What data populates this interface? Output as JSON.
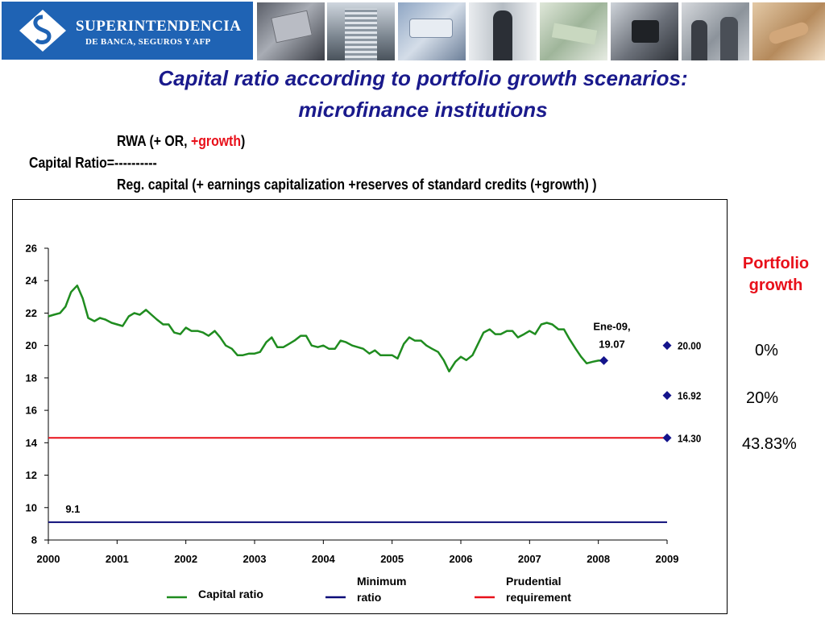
{
  "header": {
    "logo_line1": "SUPERINTENDENCIA",
    "logo_line2": "DE BANCA, SEGUROS Y AFP"
  },
  "title": {
    "line1": "Capital ratio according to portfolio growth scenarios:",
    "line2": "microfinance institutions"
  },
  "formula": {
    "numerator_prefix": "RWA  (+ OR, ",
    "numerator_growth": "+growth",
    "numerator_suffix": ")",
    "lhs": "Capital Ratio=----------",
    "denominator": "Reg. capital (+ earnings capitalization +reserves of standard credits (+growth) )"
  },
  "portfolio_growth": {
    "title_line1": "Portfolio",
    "title_line2": "growth",
    "values": [
      "0%",
      "20%",
      "43.83%"
    ]
  },
  "colors": {
    "capital_ratio": "#1f8c1f",
    "minimum_ratio": "#0c0c78",
    "prudential": "#e8101a",
    "markers": "#14148c",
    "title": "#1a1a8c",
    "logo_bg": "#1f63b4"
  },
  "chart_data": {
    "type": "line",
    "xlim": [
      2000,
      2009
    ],
    "ylim": [
      8,
      26
    ],
    "x_ticks": [
      "2000",
      "2001",
      "2002",
      "2003",
      "2004",
      "2005",
      "2006",
      "2007",
      "2008",
      "2009"
    ],
    "y_ticks": [
      "8",
      "10",
      "12",
      "14",
      "16",
      "18",
      "20",
      "22",
      "24",
      "26"
    ],
    "series": [
      {
        "name": "Capital ratio",
        "color": "#1f8c1f",
        "x": [
          2000.0,
          2000.08,
          2000.17,
          2000.25,
          2000.33,
          2000.42,
          2000.5,
          2000.58,
          2000.67,
          2000.75,
          2000.83,
          2000.92,
          2001.0,
          2001.08,
          2001.17,
          2001.25,
          2001.33,
          2001.42,
          2001.5,
          2001.58,
          2001.67,
          2001.75,
          2001.83,
          2001.92,
          2002.0,
          2002.08,
          2002.17,
          2002.25,
          2002.33,
          2002.42,
          2002.5,
          2002.58,
          2002.67,
          2002.75,
          2002.83,
          2002.92,
          2003.0,
          2003.08,
          2003.17,
          2003.25,
          2003.33,
          2003.42,
          2003.5,
          2003.58,
          2003.67,
          2003.75,
          2003.83,
          2003.92,
          2004.0,
          2004.08,
          2004.17,
          2004.25,
          2004.33,
          2004.42,
          2004.5,
          2004.58,
          2004.67,
          2004.75,
          2004.83,
          2004.92,
          2005.0,
          2005.08,
          2005.17,
          2005.25,
          2005.33,
          2005.42,
          2005.5,
          2005.58,
          2005.67,
          2005.75,
          2005.83,
          2005.92,
          2006.0,
          2006.08,
          2006.17,
          2006.25,
          2006.33,
          2006.42,
          2006.5,
          2006.58,
          2006.67,
          2006.75,
          2006.83,
          2006.92,
          2007.0,
          2007.08,
          2007.17,
          2007.25,
          2007.33,
          2007.42,
          2007.5,
          2007.58,
          2007.67,
          2007.75,
          2007.83,
          2007.92,
          2008.0,
          2008.08
        ],
        "y": [
          21.8,
          21.9,
          22.0,
          22.4,
          23.3,
          23.7,
          22.9,
          21.7,
          21.5,
          21.7,
          21.6,
          21.4,
          21.3,
          21.2,
          21.8,
          22.0,
          21.9,
          22.2,
          21.9,
          21.6,
          21.3,
          21.3,
          20.8,
          20.7,
          21.1,
          20.9,
          20.9,
          20.8,
          20.6,
          20.9,
          20.5,
          20.0,
          19.8,
          19.4,
          19.4,
          19.5,
          19.5,
          19.6,
          20.2,
          20.5,
          19.9,
          19.9,
          20.1,
          20.3,
          20.6,
          20.6,
          20.0,
          19.9,
          20.0,
          19.8,
          19.8,
          20.3,
          20.2,
          20.0,
          19.9,
          19.8,
          19.5,
          19.7,
          19.4,
          19.4,
          19.4,
          19.2,
          20.1,
          20.5,
          20.3,
          20.3,
          20.0,
          19.8,
          19.6,
          19.1,
          18.4,
          19.0,
          19.3,
          19.1,
          19.4,
          20.1,
          20.8,
          21.0,
          20.7,
          20.7,
          20.9,
          20.9,
          20.5,
          20.7,
          20.9,
          20.7,
          21.3,
          21.4,
          21.3,
          21.0,
          21.0,
          20.4,
          19.8,
          19.3,
          18.9,
          19.0,
          19.07,
          19.07
        ]
      },
      {
        "name": "Minimum ratio",
        "color": "#0c0c78",
        "x": [
          2000.0,
          2009.0
        ],
        "y": [
          9.1,
          9.1
        ]
      },
      {
        "name": "Prudential requirement",
        "color": "#e8101a",
        "x": [
          2000.0,
          2009.0
        ],
        "y": [
          14.3,
          14.3
        ]
      }
    ],
    "markers": [
      {
        "x": 2008.08,
        "y": 19.07
      },
      {
        "x": 2009.0,
        "y": 20.0,
        "label": "20.00"
      },
      {
        "x": 2009.0,
        "y": 16.92,
        "label": "16.92"
      },
      {
        "x": 2009.0,
        "y": 14.3,
        "label": "14.30"
      }
    ],
    "annotations": {
      "ene09_line1": "Ene-09,",
      "ene09_line2": "19.07",
      "min_label": "9.1"
    },
    "legend": {
      "placement": "bottom",
      "items": [
        {
          "line1": "Capital ratio",
          "line2": "",
          "color": "#1f8c1f"
        },
        {
          "line1": "Minimum",
          "line2": "ratio",
          "color": "#0c0c78"
        },
        {
          "line1": "Prudential",
          "line2": "requirement",
          "color": "#e8101a"
        }
      ]
    },
    "grid": false
  }
}
